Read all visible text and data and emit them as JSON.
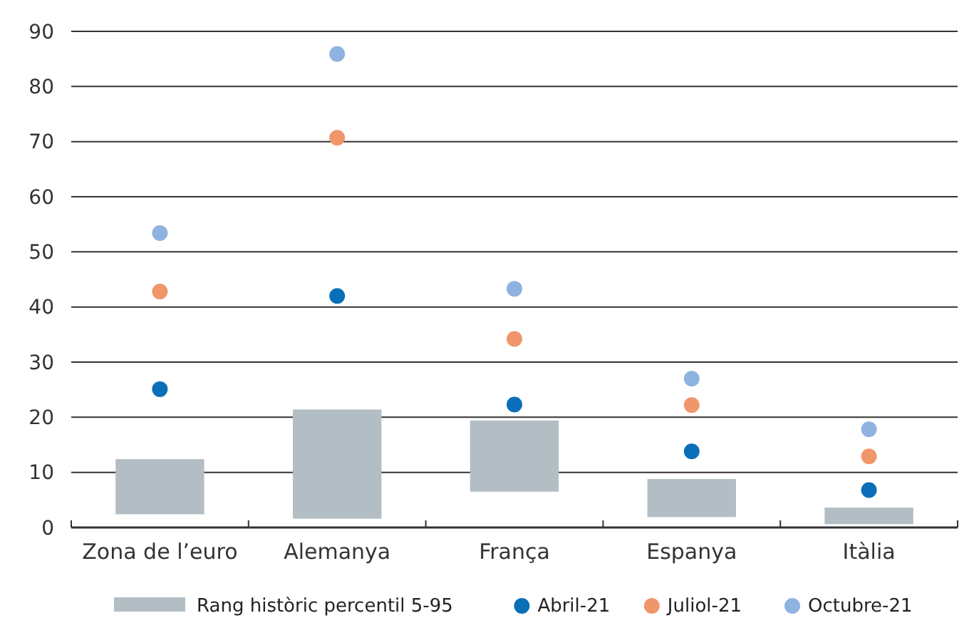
{
  "chart_data": {
    "type": "bar",
    "categories": [
      "Zona de l’euro",
      "Alemanya",
      "França",
      "Espanya",
      "Itàlia"
    ],
    "series": [
      {
        "name": "Rang històric percentil 5-95",
        "color": "#b2bec3",
        "base": [
          2.4,
          1.6,
          6.5,
          1.9,
          0.6
        ],
        "values": [
          10.0,
          19.8,
          12.9,
          6.9,
          3.0
        ]
      },
      {
        "name": "Abril-21",
        "type": "scatter",
        "color": "#0a6fb8",
        "values": [
          25.1,
          42.0,
          22.3,
          13.8,
          6.8
        ]
      },
      {
        "name": "Juliol-21",
        "type": "scatter",
        "color": "#f0966a",
        "values": [
          42.8,
          70.7,
          34.2,
          22.2,
          12.9
        ]
      },
      {
        "name": "Octubre-21",
        "type": "scatter",
        "color": "#8fb3e0",
        "values": [
          53.4,
          85.9,
          43.3,
          27.0,
          17.8
        ]
      }
    ],
    "ylim": [
      0,
      90
    ],
    "yticks": [
      0,
      10,
      20,
      30,
      40,
      50,
      60,
      70,
      80,
      90
    ],
    "grid": "y",
    "legend": "bottom",
    "marker": "circle"
  }
}
